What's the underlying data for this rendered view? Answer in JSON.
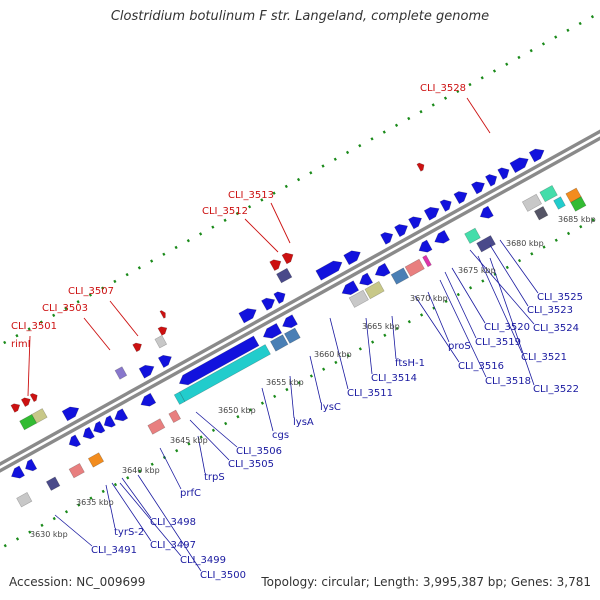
{
  "title": "Clostridium botulinum F str. Langeland, complete genome",
  "footer": {
    "accession": "Accession: NC_009699",
    "summary": "Topology: circular; Length: 3,995,387 bp; Genes: 3,781"
  },
  "colors": {
    "backbone": "#8a8a8a",
    "cds_blue": "#1212dd",
    "gene_label_blue": "#1a1aa0",
    "feature_label_red": "#cc1111",
    "tick_green": "#1a8a1a",
    "tick_label": "#444444",
    "teal": "#22cccc",
    "steel_blue": "#4a7fb5",
    "khaki": "#c8c888",
    "gray": "#c8c8c8",
    "salmon": "#e87f7f",
    "orange": "#f28c1e",
    "slate": "#4a4a8a",
    "mint": "#44ddaa",
    "green": "#33bb33",
    "lavender": "#8877cc",
    "magenta": "#dd33aa",
    "dark_gray": "#555566"
  },
  "scale_labels": [
    "3630 kbp",
    "3635 kbp",
    "3640 kbp",
    "3645 kbp",
    "3650 kbp",
    "3655 kbp",
    "3660 kbp",
    "3665 kbp",
    "3670 kbp",
    "3675 kbp",
    "3680 kbp",
    "3685 kbp"
  ],
  "red_labels": [
    "CLI_3528",
    "CLI_3513",
    "CLI_3512",
    "CLI_3507",
    "CLI_3503",
    "CLI_3501",
    "rimI"
  ],
  "blue_labels": [
    "CLI_3525",
    "CLI_3523",
    "CLI_3524",
    "CLI_3520",
    "CLI_3519",
    "CLI_3521",
    "proS",
    "CLI_3516",
    "CLI_3518",
    "CLI_3522",
    "ftsH-1",
    "CLI_3514",
    "CLI_3511",
    "lysC",
    "lysA",
    "cgs",
    "CLI_3506",
    "CLI_3505",
    "trpS",
    "prfC",
    "CLI_3498",
    "tyrS-2",
    "CLI_3497",
    "CLI_3499",
    "CLI_3500",
    "CLI_3491"
  ]
}
